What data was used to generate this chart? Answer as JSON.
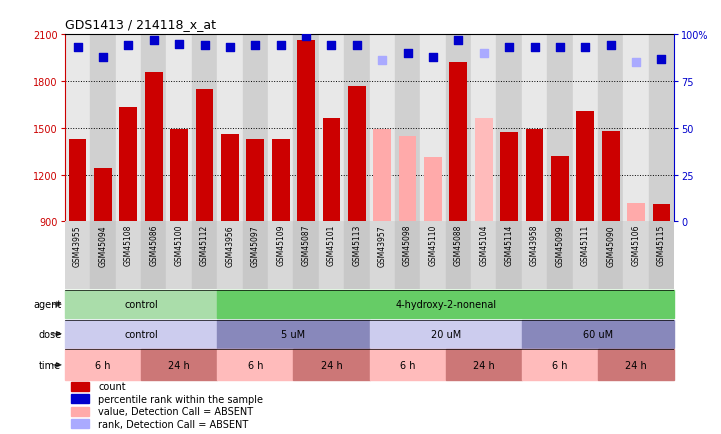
{
  "title": "GDS1413 / 214118_x_at",
  "samples": [
    "GSM43955",
    "GSM45094",
    "GSM45108",
    "GSM45086",
    "GSM45100",
    "GSM45112",
    "GSM43956",
    "GSM45097",
    "GSM45109",
    "GSM45087",
    "GSM45101",
    "GSM45113",
    "GSM43957",
    "GSM45098",
    "GSM45110",
    "GSM45088",
    "GSM45104",
    "GSM45114",
    "GSM43958",
    "GSM45099",
    "GSM45111",
    "GSM45090",
    "GSM45106",
    "GSM45115"
  ],
  "bar_values": [
    1430,
    1240,
    1630,
    1860,
    1490,
    1750,
    1460,
    1430,
    1430,
    2060,
    1560,
    1770,
    1490,
    1450,
    1310,
    1920,
    1560,
    1470,
    1490,
    1320,
    1610,
    1480,
    1020,
    1010
  ],
  "bar_colors": [
    "#cc0000",
    "#cc0000",
    "#cc0000",
    "#cc0000",
    "#cc0000",
    "#cc0000",
    "#cc0000",
    "#cc0000",
    "#cc0000",
    "#cc0000",
    "#cc0000",
    "#cc0000",
    "#ffaaaa",
    "#ffaaaa",
    "#ffaaaa",
    "#cc0000",
    "#ffbbbb",
    "#cc0000",
    "#cc0000",
    "#cc0000",
    "#cc0000",
    "#cc0000",
    "#ffaaaa",
    "#cc0000"
  ],
  "dot_values": [
    93,
    88,
    94,
    97,
    95,
    94,
    93,
    94,
    94,
    99,
    94,
    94,
    86,
    90,
    88,
    97,
    90,
    93,
    93,
    93,
    93,
    94,
    85,
    87
  ],
  "dot_colors": [
    "#0000cc",
    "#0000cc",
    "#0000cc",
    "#0000cc",
    "#0000cc",
    "#0000cc",
    "#0000cc",
    "#0000cc",
    "#0000cc",
    "#0000cc",
    "#0000cc",
    "#0000cc",
    "#aaaaff",
    "#0000cc",
    "#0000cc",
    "#0000cc",
    "#aaaaff",
    "#0000cc",
    "#0000cc",
    "#0000cc",
    "#0000cc",
    "#0000cc",
    "#aaaaff",
    "#0000cc"
  ],
  "ylim_left": [
    900,
    2100
  ],
  "ylim_right": [
    0,
    100
  ],
  "yticks_left": [
    900,
    1200,
    1500,
    1800,
    2100
  ],
  "yticks_right": [
    0,
    25,
    50,
    75,
    100
  ],
  "ytick_labels_right": [
    "0",
    "25",
    "50",
    "75",
    "100%"
  ],
  "agent_groups": [
    {
      "label": "control",
      "start": 0,
      "end": 6,
      "color": "#aaddaa"
    },
    {
      "label": "4-hydroxy-2-nonenal",
      "start": 6,
      "end": 24,
      "color": "#66cc66"
    }
  ],
  "dose_groups": [
    {
      "label": "control",
      "start": 0,
      "end": 6,
      "color": "#ccccee"
    },
    {
      "label": "5 uM",
      "start": 6,
      "end": 12,
      "color": "#8888bb"
    },
    {
      "label": "20 uM",
      "start": 12,
      "end": 18,
      "color": "#ccccee"
    },
    {
      "label": "60 uM",
      "start": 18,
      "end": 24,
      "color": "#8888bb"
    }
  ],
  "time_groups": [
    {
      "label": "6 h",
      "start": 0,
      "end": 3,
      "color": "#ffbbbb"
    },
    {
      "label": "24 h",
      "start": 3,
      "end": 6,
      "color": "#cc7777"
    },
    {
      "label": "6 h",
      "start": 6,
      "end": 9,
      "color": "#ffbbbb"
    },
    {
      "label": "24 h",
      "start": 9,
      "end": 12,
      "color": "#cc7777"
    },
    {
      "label": "6 h",
      "start": 12,
      "end": 15,
      "color": "#ffbbbb"
    },
    {
      "label": "24 h",
      "start": 15,
      "end": 18,
      "color": "#cc7777"
    },
    {
      "label": "6 h",
      "start": 18,
      "end": 21,
      "color": "#ffbbbb"
    },
    {
      "label": "24 h",
      "start": 21,
      "end": 24,
      "color": "#cc7777"
    }
  ],
  "legend_items": [
    {
      "color": "#cc0000",
      "label": "count"
    },
    {
      "color": "#0000cc",
      "label": "percentile rank within the sample"
    },
    {
      "color": "#ffaaaa",
      "label": "value, Detection Call = ABSENT"
    },
    {
      "color": "#aaaaff",
      "label": "rank, Detection Call = ABSENT"
    }
  ],
  "col_bg_even": "#e8e8e8",
  "col_bg_odd": "#d0d0d0",
  "label_bg_even": "#d8d8d8",
  "label_bg_odd": "#c8c8c8"
}
